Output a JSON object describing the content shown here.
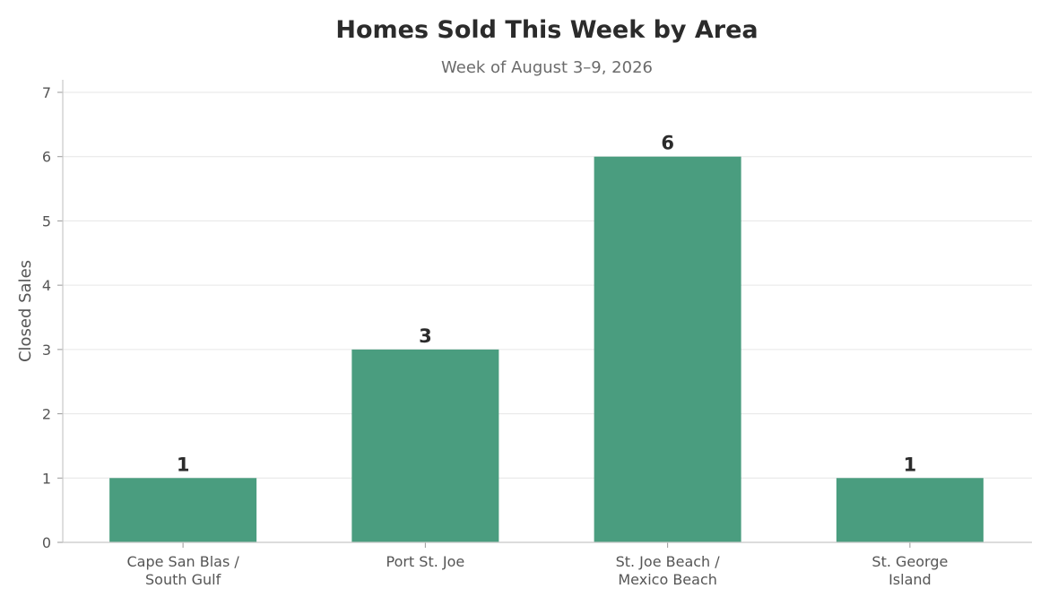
{
  "chart_data": {
    "type": "bar",
    "title": "Homes Sold This Week by Area",
    "subtitle": "Week of August 3–9, 2026",
    "xlabel": "",
    "ylabel": "Closed Sales",
    "categories": [
      [
        "Cape San Blas /",
        "South Gulf"
      ],
      [
        "Port St. Joe"
      ],
      [
        "St. Joe Beach /",
        "Mexico Beach"
      ],
      [
        "St. George",
        "Island"
      ]
    ],
    "values": [
      1,
      3,
      6,
      1
    ],
    "data_labels": [
      "1",
      "3",
      "6",
      "1"
    ],
    "ylim": [
      0,
      7
    ],
    "yticks": [
      "0",
      "1",
      "2",
      "3",
      "4",
      "5",
      "6",
      "7"
    ],
    "grid": true,
    "legend": "none",
    "bar_color": "#4a9d7f"
  }
}
